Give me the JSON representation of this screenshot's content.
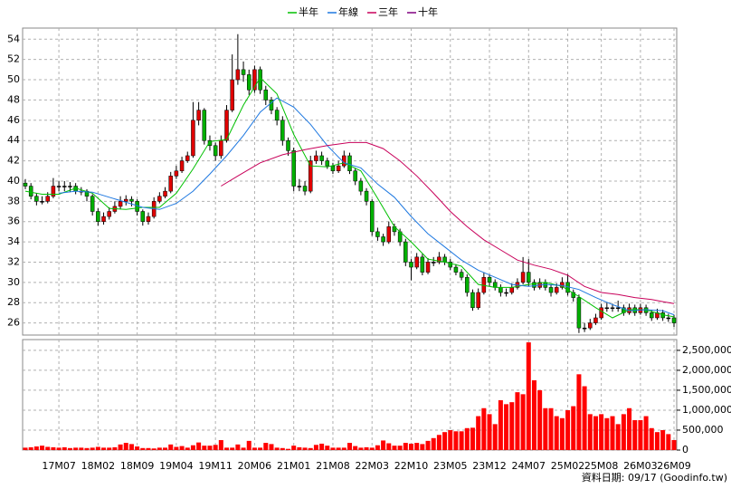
{
  "chart_data": [
    {
      "type": "candlestick",
      "legend": "top",
      "grid": true,
      "up_color": "#e00000",
      "down_color": "#00b000",
      "categories": [
        null,
        null,
        null,
        null,
        null,
        null,
        "17M07",
        null,
        null,
        null,
        null,
        null,
        null,
        "18M02",
        null,
        null,
        null,
        null,
        null,
        null,
        "18M09",
        null,
        null,
        null,
        null,
        null,
        null,
        "19M04",
        null,
        null,
        null,
        null,
        null,
        null,
        "19M11",
        null,
        null,
        null,
        null,
        null,
        null,
        "20M06",
        null,
        null,
        null,
        null,
        null,
        null,
        "21M01",
        null,
        null,
        null,
        null,
        null,
        null,
        "21M08",
        null,
        null,
        null,
        null,
        null,
        null,
        "22M03",
        null,
        null,
        null,
        null,
        null,
        null,
        "22M10",
        null,
        null,
        null,
        null,
        null,
        null,
        "23M05",
        null,
        null,
        null,
        null,
        null,
        null,
        "23M12",
        null,
        null,
        null,
        null,
        null,
        null,
        "24M07",
        null,
        null,
        null,
        null,
        null,
        null,
        "25M02",
        null,
        null,
        null,
        null,
        null,
        "25M08",
        null,
        null,
        null,
        null,
        null,
        null,
        "26M03",
        null,
        null,
        null,
        null,
        null,
        "26M09"
      ],
      "ohlc": [
        [
          39.8,
          40.2,
          39.2,
          39.5
        ],
        [
          39.5,
          39.8,
          38.2,
          38.5
        ],
        [
          38.5,
          38.8,
          37.6,
          38
        ],
        [
          38,
          38.5,
          37.7,
          38
        ],
        [
          38,
          38.9,
          37.8,
          38.5
        ],
        [
          38.5,
          40.3,
          38.3,
          39.5
        ],
        [
          39.5,
          40,
          39,
          39.5
        ],
        [
          39.5,
          40,
          39,
          39.5
        ],
        [
          39.5,
          39.9,
          38.9,
          39.5
        ],
        [
          39.5,
          39.8,
          38.7,
          39
        ],
        [
          39,
          39.4,
          38.6,
          39
        ],
        [
          39,
          39.2,
          38,
          38.5
        ],
        [
          38.5,
          38.7,
          36.6,
          37
        ],
        [
          37,
          37.3,
          35.6,
          36
        ],
        [
          36,
          36.9,
          35.7,
          36.5
        ],
        [
          36.5,
          37.4,
          36.2,
          37
        ],
        [
          37,
          38,
          36.8,
          37.5
        ],
        [
          37.5,
          38.5,
          37.2,
          38
        ],
        [
          38,
          38.6,
          37.6,
          38.2
        ],
        [
          38.2,
          38.5,
          37.5,
          38
        ],
        [
          38,
          38.2,
          36.6,
          37
        ],
        [
          37,
          37.2,
          35.6,
          36
        ],
        [
          36,
          36.9,
          35.7,
          36.5
        ],
        [
          36.5,
          38.4,
          36.3,
          38
        ],
        [
          38,
          38.9,
          37.8,
          38.5
        ],
        [
          38.5,
          39.4,
          38.3,
          39
        ],
        [
          39,
          40.9,
          38.8,
          40.5
        ],
        [
          40.5,
          41.5,
          40.2,
          41
        ],
        [
          41,
          42.4,
          40.8,
          42
        ],
        [
          42,
          42.9,
          41.8,
          42.5
        ],
        [
          42.5,
          47.8,
          42.3,
          46
        ],
        [
          46,
          47.8,
          45.5,
          47
        ],
        [
          47,
          47.2,
          43.6,
          44
        ],
        [
          44,
          44.5,
          43,
          43.5
        ],
        [
          43.5,
          43.8,
          42,
          42.5
        ],
        [
          42.5,
          44.5,
          42.2,
          44
        ],
        [
          44,
          47.5,
          43.8,
          47
        ],
        [
          47,
          52.5,
          46.8,
          50
        ],
        [
          50,
          54.5,
          49.5,
          51
        ],
        [
          51,
          51.8,
          49.8,
          50.5
        ],
        [
          50.5,
          51,
          48.5,
          49
        ],
        [
          49,
          51.4,
          48.7,
          51
        ],
        [
          51,
          51.3,
          48.6,
          49
        ],
        [
          49,
          49.4,
          47.5,
          48
        ],
        [
          48,
          48.3,
          46.6,
          47
        ],
        [
          47,
          47.3,
          45.5,
          46
        ],
        [
          46,
          46.4,
          43.5,
          44
        ],
        [
          44,
          44.3,
          42.5,
          43
        ],
        [
          43,
          43.3,
          39,
          39.5
        ],
        [
          39.5,
          40.2,
          39,
          39.5
        ],
        [
          39.5,
          40,
          38.6,
          39
        ],
        [
          39,
          42.5,
          38.8,
          42
        ],
        [
          42,
          43,
          41.7,
          42.5
        ],
        [
          42.5,
          42.9,
          41.6,
          42
        ],
        [
          42,
          42.3,
          41.2,
          41.5
        ],
        [
          41.5,
          41.8,
          40.7,
          41
        ],
        [
          41,
          42,
          40.8,
          41.5
        ],
        [
          41.5,
          43,
          41.3,
          42.5
        ],
        [
          42.5,
          42.8,
          40.7,
          41
        ],
        [
          41,
          41.3,
          39.6,
          40
        ],
        [
          40,
          40.3,
          38.6,
          39
        ],
        [
          39,
          39.3,
          37.6,
          38
        ],
        [
          38,
          38.2,
          34.6,
          35
        ],
        [
          35,
          35.4,
          34.1,
          34.5
        ],
        [
          34.5,
          34.8,
          33.6,
          34
        ],
        [
          34,
          36,
          33.8,
          35.5
        ],
        [
          35.5,
          35.8,
          34.6,
          35
        ],
        [
          35,
          35.3,
          33.6,
          34
        ],
        [
          34,
          34.3,
          31.6,
          32
        ],
        [
          32,
          32.3,
          30.2,
          31.5
        ],
        [
          31.5,
          32.9,
          31.3,
          32.5
        ],
        [
          32.5,
          32.8,
          30.7,
          31
        ],
        [
          31,
          32.4,
          30.8,
          32
        ],
        [
          32,
          32.5,
          31.6,
          32
        ],
        [
          32,
          33,
          31.8,
          32.5
        ],
        [
          32.5,
          32.8,
          31.7,
          32
        ],
        [
          32,
          32.3,
          31.2,
          31.5
        ],
        [
          31.5,
          31.8,
          30.7,
          31
        ],
        [
          31,
          31.3,
          30.2,
          30.5
        ],
        [
          30.5,
          30.8,
          28.6,
          29
        ],
        [
          29,
          29.3,
          27.2,
          27.5
        ],
        [
          27.5,
          29.4,
          27.3,
          29
        ],
        [
          29,
          31,
          28.8,
          30.5
        ],
        [
          30.5,
          30.8,
          29.6,
          30
        ],
        [
          30,
          30.3,
          29.2,
          29.5
        ],
        [
          29.5,
          29.8,
          28.6,
          29
        ],
        [
          29,
          29.4,
          28.6,
          29
        ],
        [
          29,
          29.9,
          28.8,
          29.5
        ],
        [
          29.5,
          30.4,
          29.3,
          30
        ],
        [
          30,
          32.5,
          29.8,
          31
        ],
        [
          31,
          32.3,
          29.6,
          30
        ],
        [
          30,
          30.3,
          29.2,
          29.5
        ],
        [
          29.5,
          30.4,
          29.3,
          30
        ],
        [
          30,
          30.3,
          29.2,
          29.5
        ],
        [
          29.5,
          29.8,
          28.6,
          29
        ],
        [
          29,
          29.9,
          28.8,
          29.5
        ],
        [
          29.5,
          30.5,
          29.3,
          30
        ],
        [
          30,
          30.8,
          28.7,
          29
        ],
        [
          29,
          29.3,
          28.1,
          28.5
        ],
        [
          28.5,
          28.8,
          25,
          25.5
        ],
        [
          25.5,
          26,
          25.1,
          25.5
        ],
        [
          25.5,
          26.4,
          25.3,
          26
        ],
        [
          26,
          26.9,
          25.8,
          26.5
        ],
        [
          26.5,
          27.9,
          26.3,
          27.5
        ],
        [
          27.5,
          28,
          27.1,
          27.5
        ],
        [
          27.5,
          27.9,
          27.1,
          27.5
        ],
        [
          27.5,
          28.2,
          27.1,
          27.5
        ],
        [
          27.5,
          27.8,
          26.7,
          27
        ],
        [
          27,
          27.9,
          26.8,
          27.5
        ],
        [
          27.5,
          27.8,
          26.7,
          27
        ],
        [
          27,
          27.9,
          26.8,
          27.5
        ],
        [
          27.5,
          27.8,
          26.7,
          27
        ],
        [
          27,
          27.3,
          26.2,
          26.5
        ],
        [
          26.5,
          27.4,
          26.3,
          27
        ],
        [
          27,
          27.3,
          26.2,
          26.5
        ],
        [
          26.5,
          26.9,
          26.1,
          26.5
        ],
        [
          26.5,
          26.8,
          25.6,
          26
        ]
      ],
      "series": [
        {
          "name": "半年",
          "color": "#00c000",
          "x": [
            0,
            3,
            6,
            9,
            12,
            15,
            18,
            21,
            24,
            27,
            30,
            33,
            36,
            39,
            42,
            45,
            48,
            51,
            54,
            57,
            60,
            63,
            66,
            69,
            72,
            75,
            78,
            81,
            84,
            87,
            90,
            93,
            96,
            99,
            102,
            105,
            108,
            111,
            114,
            116
          ],
          "values": [
            39,
            38.7,
            38.7,
            39.3,
            38.8,
            37.3,
            37.2,
            37.4,
            37.4,
            38.8,
            41.2,
            43.9,
            44.1,
            47.5,
            50.2,
            48.6,
            44.6,
            41.5,
            41.4,
            41.8,
            41,
            38.3,
            35.5,
            34,
            32.3,
            32,
            31.6,
            29.8,
            29.5,
            29.5,
            29.8,
            30,
            29.6,
            28.6,
            27.5,
            26.5,
            27.3,
            27.3,
            26.8,
            26.6
          ]
        },
        {
          "name": "年線",
          "color": "#1e78e0",
          "x": [
            6,
            9,
            12,
            15,
            18,
            21,
            24,
            27,
            30,
            33,
            36,
            39,
            42,
            45,
            48,
            51,
            54,
            57,
            60,
            63,
            66,
            69,
            72,
            75,
            78,
            81,
            84,
            87,
            90,
            93,
            96,
            99,
            102,
            105,
            108,
            111,
            114,
            116
          ],
          "values": [
            38.8,
            39,
            38.9,
            38.4,
            37.9,
            37.4,
            37.2,
            37.8,
            39,
            40.7,
            42.5,
            44.5,
            46.8,
            48.2,
            47.3,
            45.6,
            43.5,
            41.8,
            41.3,
            39.7,
            38.4,
            36.5,
            34.8,
            33.5,
            32.2,
            31.2,
            30.5,
            29.8,
            29.6,
            29.8,
            29.7,
            29.3,
            28.5,
            27.8,
            27.2,
            27.3,
            27.2,
            26.8
          ]
        },
        {
          "name": "三年",
          "color": "#c8005a",
          "x": [
            35,
            38,
            42,
            46,
            50,
            54,
            58,
            61,
            64,
            67,
            70,
            73,
            76,
            79,
            82,
            85,
            88,
            91,
            94,
            97,
            100,
            103,
            106,
            109,
            112,
            114,
            116
          ],
          "values": [
            39.5,
            40.5,
            41.8,
            42.6,
            43.1,
            43.5,
            43.8,
            43.8,
            43.2,
            42,
            40.5,
            38.8,
            37,
            35.5,
            34.2,
            33.2,
            32.2,
            31.7,
            31.3,
            30.7,
            29.6,
            29,
            28.8,
            28.5,
            28.3,
            28.1,
            27.9
          ]
        },
        {
          "name": "十年",
          "color": "#800080",
          "x": [],
          "values": []
        }
      ],
      "ylim": [
        24.8,
        55.1
      ],
      "yticks": [
        26,
        28,
        30,
        32,
        34,
        36,
        38,
        40,
        42,
        44,
        46,
        48,
        50,
        52,
        54
      ]
    },
    {
      "type": "bar",
      "color": "#ff0000",
      "grid": true,
      "y_axis_side": "right",
      "values": [
        60000,
        70000,
        90000,
        110000,
        80000,
        70000,
        60000,
        70000,
        50000,
        60000,
        60000,
        50000,
        60000,
        80000,
        60000,
        60000,
        70000,
        140000,
        180000,
        150000,
        90000,
        50000,
        50000,
        40000,
        60000,
        60000,
        140000,
        80000,
        100000,
        60000,
        120000,
        190000,
        110000,
        110000,
        130000,
        250000,
        60000,
        60000,
        140000,
        60000,
        230000,
        60000,
        60000,
        180000,
        150000,
        60000,
        50000,
        30000,
        110000,
        70000,
        60000,
        50000,
        130000,
        160000,
        110000,
        60000,
        60000,
        60000,
        180000,
        100000,
        60000,
        70000,
        60000,
        120000,
        240000,
        170000,
        110000,
        110000,
        180000,
        160000,
        180000,
        150000,
        230000,
        300000,
        380000,
        450000,
        500000,
        470000,
        470000,
        550000,
        560000,
        850000,
        1050000,
        900000,
        650000,
        1250000,
        1150000,
        1200000,
        1450000,
        1400000,
        2700000,
        1750000,
        1500000,
        1050000,
        1050000,
        850000,
        800000,
        1000000,
        1100000,
        1900000,
        1600000,
        900000,
        850000,
        900000,
        800000,
        850000,
        650000,
        900000,
        1050000,
        750000,
        750000,
        850000,
        550000,
        450000,
        500000,
        400000,
        250000
      ],
      "ylim": [
        0,
        2770000
      ],
      "yticks": [
        0,
        {
          "value": 500000,
          "label": "500,000"
        },
        {
          "value": 1000000,
          "label": "1,000,000"
        },
        {
          "value": 1500000,
          "label": "1,500,000"
        },
        {
          "value": 2000000,
          "label": "2,000,000"
        },
        {
          "value": 2500000,
          "label": "2,500,000"
        }
      ],
      "footnote": "資料日期: 09/17 (Goodinfo.tw)"
    }
  ]
}
